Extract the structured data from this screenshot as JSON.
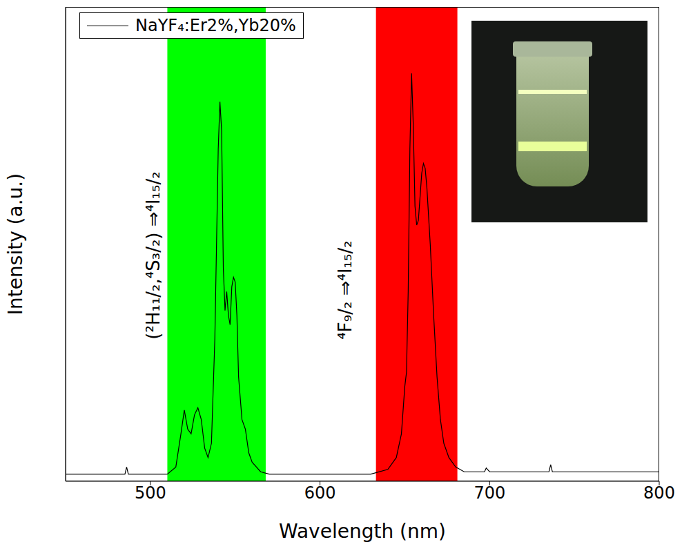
{
  "chart_data": {
    "type": "line",
    "x_label": "Wavelength (nm)",
    "y_label": "Intensity (a.u.)",
    "xlim": [
      450,
      800
    ],
    "xticks": [
      500,
      600,
      700,
      800
    ],
    "ylim": [
      0,
      100
    ],
    "tick_labels": "x",
    "legend": "upper left",
    "x": [
      450,
      485,
      486,
      487,
      500,
      510,
      515,
      518,
      520,
      522,
      524,
      526,
      528,
      530,
      532,
      534,
      536,
      538,
      540,
      541,
      542,
      543,
      544,
      545,
      546,
      547,
      548,
      549,
      550,
      551,
      552,
      554,
      556,
      558,
      560,
      565,
      570,
      600,
      630,
      640,
      645,
      648,
      650,
      651,
      652,
      653,
      654,
      655,
      656,
      657,
      658,
      659,
      660,
      661,
      662,
      663,
      665,
      667,
      669,
      671,
      673,
      676,
      680,
      685,
      697,
      698,
      700,
      735,
      736,
      737,
      800
    ],
    "series": [
      {
        "name": "NaYF₄:Er2%,Yb20%",
        "color": "#000000",
        "values": [
          1.5,
          1.5,
          3,
          1.5,
          1.5,
          1.5,
          3,
          10,
          15,
          11,
          10,
          14,
          15.5,
          13,
          7,
          5,
          8,
          30,
          70,
          80,
          74,
          45,
          36,
          40,
          35,
          33,
          41,
          43,
          42,
          35,
          22,
          13,
          11,
          6,
          4,
          2,
          1.5,
          1.5,
          1.5,
          2.5,
          5,
          10,
          20,
          23,
          40,
          70,
          86,
          75,
          58,
          54,
          55,
          60,
          65,
          67,
          66,
          62,
          50,
          35,
          22,
          13,
          8,
          5,
          3,
          2,
          2,
          2.8,
          2,
          2,
          3.5,
          2,
          2
        ]
      }
    ],
    "bands": [
      {
        "x": [
          510,
          568
        ],
        "color": "#00ff00"
      },
      {
        "x": [
          633,
          681
        ],
        "color": "#ff0000"
      }
    ],
    "annotations": [
      {
        "text": "(²H₁₁/₂,⁴S₃/₂) ⇒⁴I₁₅/₂",
        "color": "#000000"
      },
      {
        "text": "⁴F₉/₂ ⇒⁴I₁₅/₂",
        "color": "#000000"
      }
    ]
  }
}
